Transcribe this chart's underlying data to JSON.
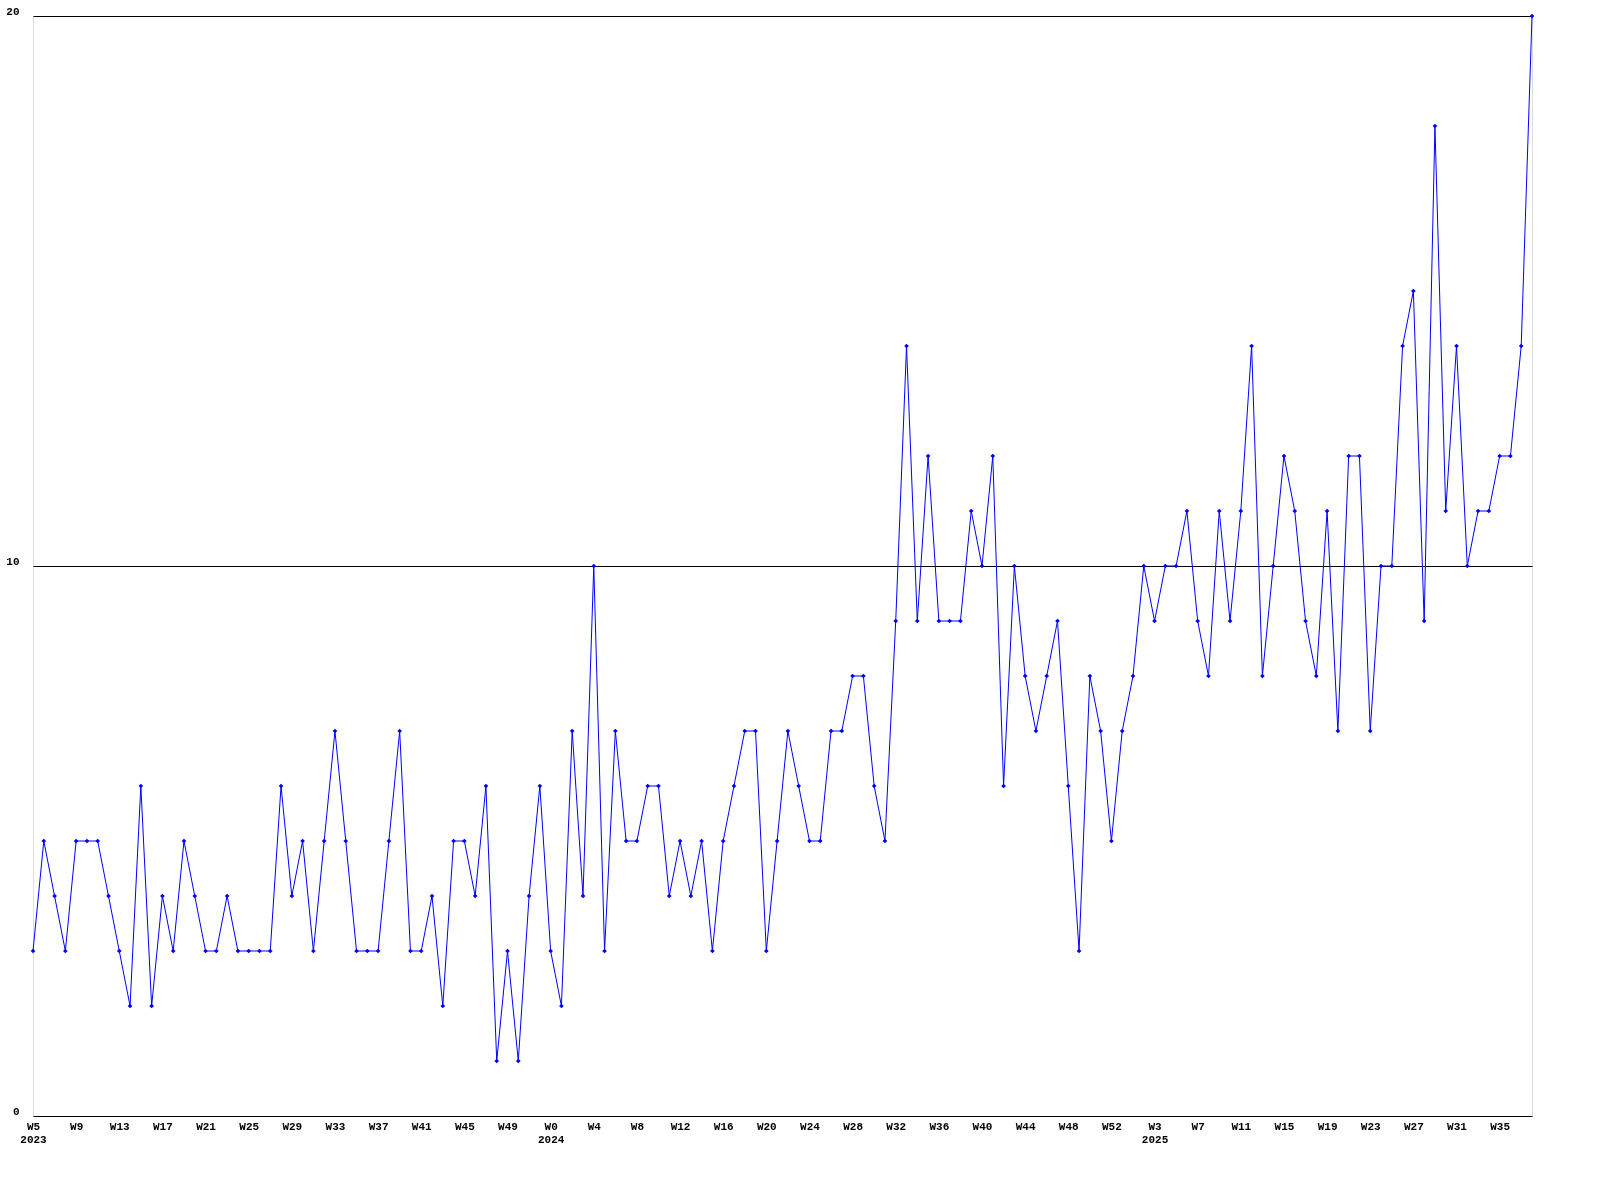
{
  "chart_data": {
    "type": "line",
    "categories": [
      "W5\n2023",
      null,
      null,
      null,
      "W9",
      null,
      null,
      null,
      "W13",
      null,
      null,
      null,
      "W17",
      null,
      null,
      null,
      "W21",
      null,
      null,
      null,
      "W25",
      null,
      null,
      null,
      "W29",
      null,
      null,
      null,
      "W33",
      null,
      null,
      null,
      "W37",
      null,
      null,
      null,
      "W41",
      null,
      null,
      null,
      "W45",
      null,
      null,
      null,
      "W49",
      null,
      null,
      null,
      "W0\n2024",
      null,
      null,
      null,
      "W4",
      null,
      null,
      null,
      "W8",
      null,
      null,
      null,
      "W12",
      null,
      null,
      null,
      "W16",
      null,
      null,
      null,
      "W20",
      null,
      null,
      null,
      "W24",
      null,
      null,
      null,
      "W28",
      null,
      null,
      null,
      "W32",
      null,
      null,
      null,
      "W36",
      null,
      null,
      null,
      "W40",
      null,
      null,
      null,
      "W44",
      null,
      null,
      null,
      "W48",
      null,
      null,
      null,
      "W52",
      null,
      null,
      null,
      "W3\n2025",
      null,
      null,
      null,
      "W7",
      null,
      null,
      null,
      "W11",
      null,
      null,
      null,
      "W15",
      null,
      null,
      null,
      "W19",
      null,
      null,
      null,
      "W23",
      null,
      null,
      null,
      "W27",
      null,
      null,
      null,
      "W31",
      null,
      null,
      null,
      "W35",
      null,
      null,
      null
    ],
    "values": [
      3,
      5,
      4,
      3,
      5,
      5,
      5,
      4,
      3,
      2,
      6,
      2,
      4,
      3,
      5,
      4,
      3,
      3,
      4,
      3,
      3,
      3,
      3,
      6,
      4,
      5,
      3,
      5,
      7,
      5,
      3,
      3,
      3,
      5,
      7,
      3,
      3,
      4,
      2,
      5,
      5,
      4,
      6,
      1,
      3,
      1,
      4,
      6,
      3,
      2,
      7,
      4,
      10,
      3,
      7,
      5,
      5,
      6,
      6,
      4,
      5,
      4,
      5,
      3,
      5,
      6,
      7,
      7,
      3,
      5,
      7,
      6,
      5,
      5,
      7,
      7,
      8,
      8,
      6,
      5,
      9,
      14,
      9,
      12,
      9,
      9,
      9,
      11,
      10,
      12,
      6,
      10,
      8,
      7,
      8,
      9,
      6,
      3,
      8,
      7,
      5,
      7,
      8,
      10,
      9,
      10,
      10,
      11,
      9,
      8,
      11,
      9,
      11,
      14,
      8,
      10,
      12,
      11,
      9,
      8,
      11,
      7,
      12,
      12,
      7,
      10,
      10,
      14,
      15,
      9,
      18,
      11,
      14,
      10,
      11,
      11,
      12,
      12,
      14,
      20
    ],
    "color": "#0000ff",
    "ylim": [
      0,
      20
    ],
    "yticks": [
      0,
      10,
      20
    ],
    "grid": "y",
    "marker": "diamond",
    "line_style": "solid"
  }
}
